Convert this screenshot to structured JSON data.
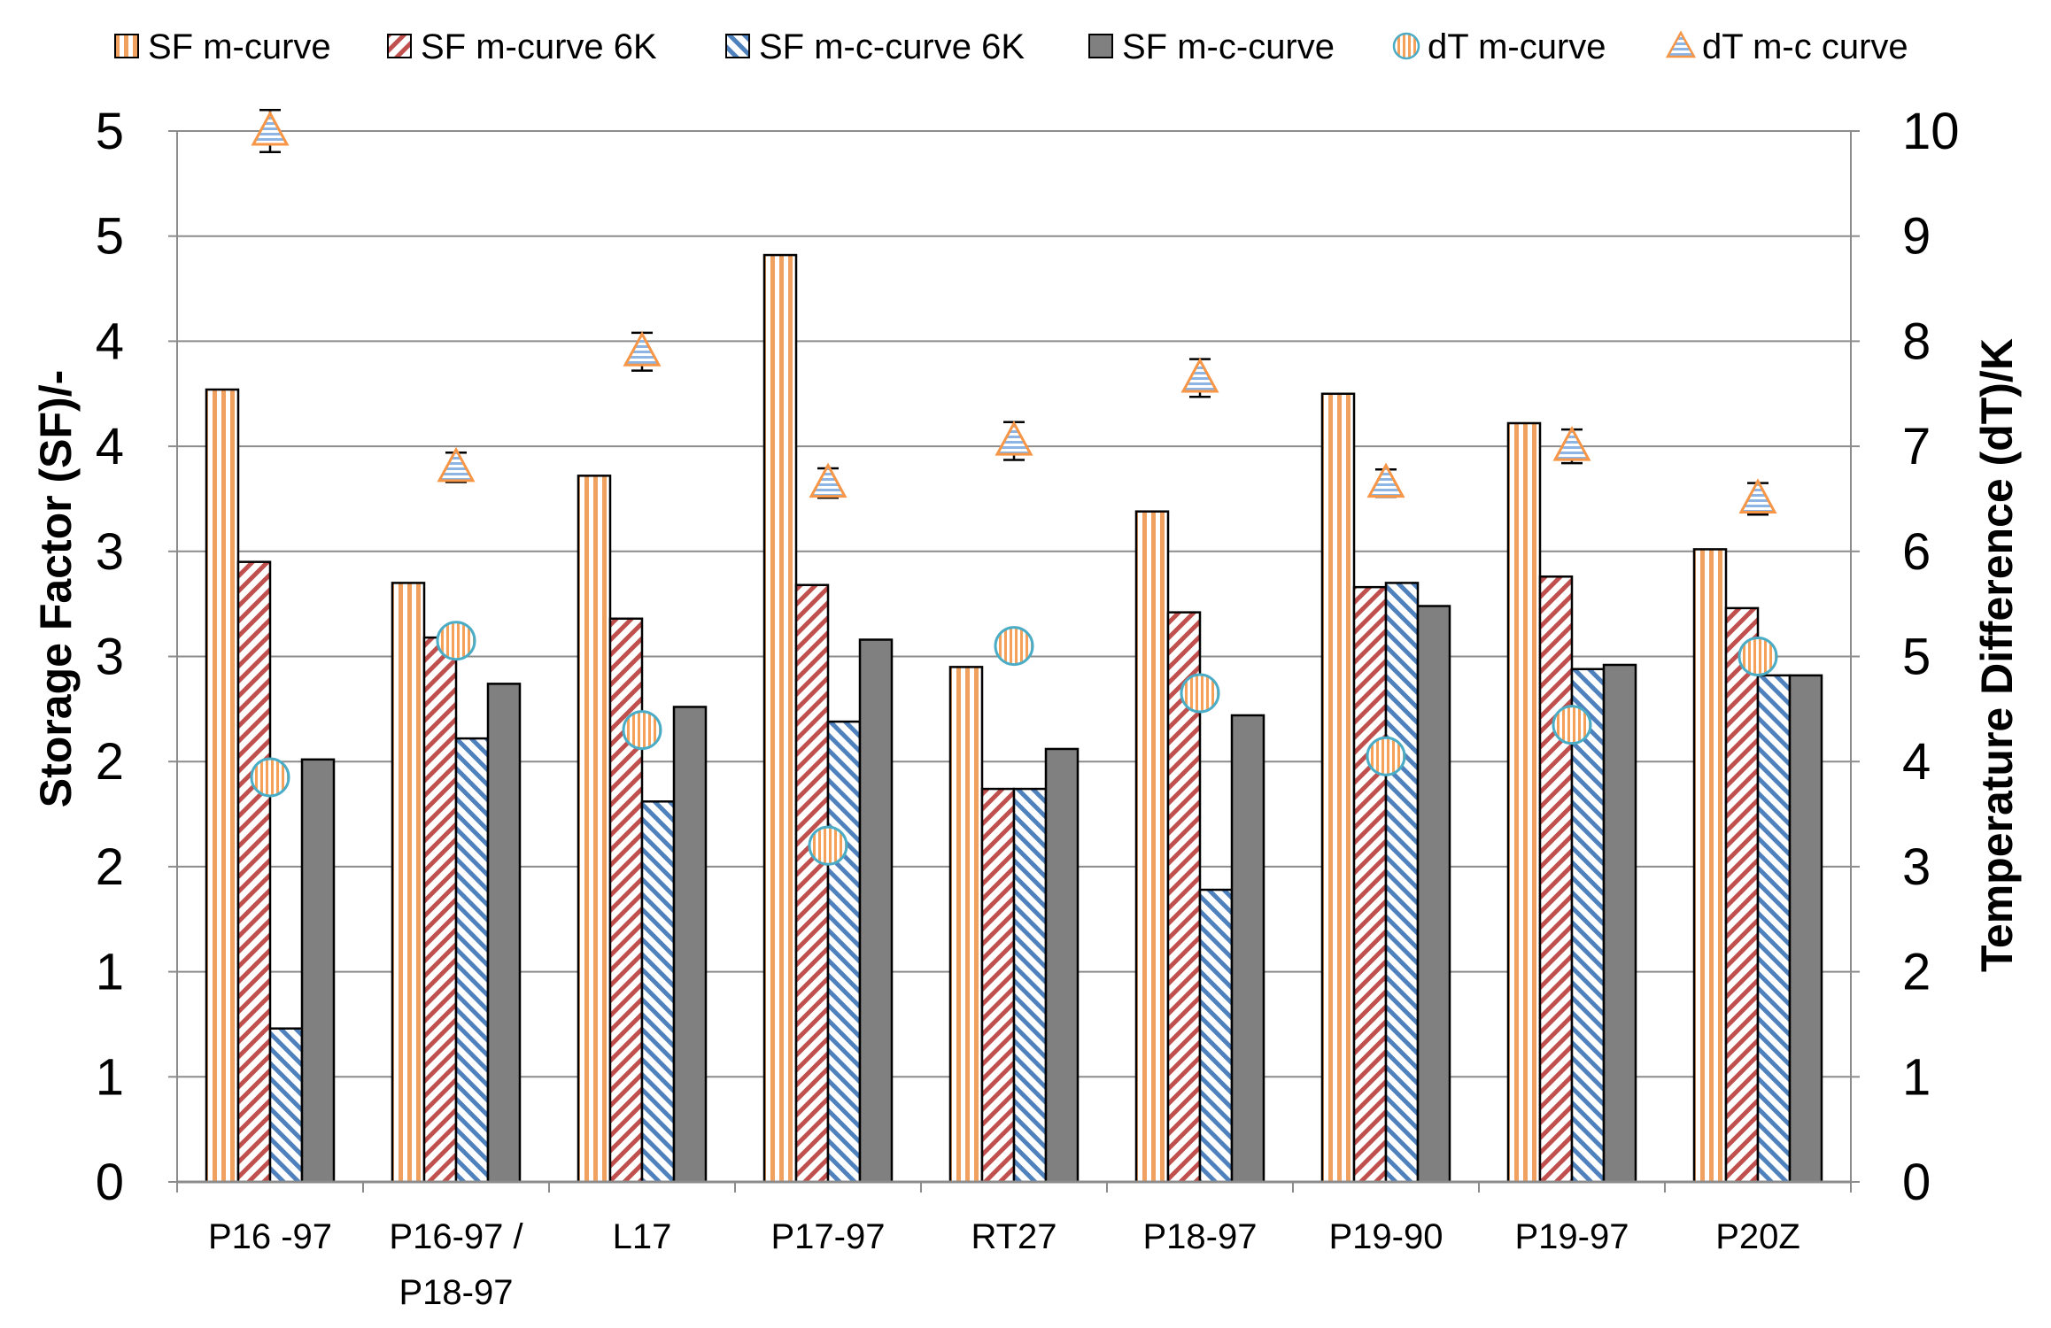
{
  "chart_data": {
    "type": "bar",
    "title": "",
    "categories": [
      [
        "P16 -97"
      ],
      [
        "P16-97 /",
        "P18-97"
      ],
      [
        "L17"
      ],
      [
        "P17-97"
      ],
      [
        "RT27"
      ],
      [
        "P18-97"
      ],
      [
        "P19-90"
      ],
      [
        "P19-97"
      ],
      [
        "P20Z"
      ]
    ],
    "y_left": {
      "label": "Storage Factor (SF)/-",
      "min": 0,
      "max": 5,
      "tick_labels": [
        "0",
        "1",
        "1",
        "2",
        "2",
        "3",
        "3",
        "4",
        "4",
        "5",
        "5"
      ]
    },
    "y_right": {
      "label": "Temperature Difference (dT)/K",
      "min": 0,
      "max": 10,
      "tick_labels": [
        "0",
        "1",
        "2",
        "3",
        "4",
        "5",
        "6",
        "7",
        "8",
        "9",
        "10"
      ]
    },
    "grid": true,
    "legend_position": "top",
    "series": [
      {
        "name": "SF m-curve",
        "kind": "bar",
        "axis": "left",
        "pattern": "vertical",
        "color": "#f0a160",
        "values": [
          3.77,
          2.85,
          3.36,
          4.41,
          2.45,
          3.19,
          3.75,
          3.61,
          3.01
        ]
      },
      {
        "name": "SF m-curve  6K",
        "kind": "bar",
        "axis": "left",
        "pattern": "diag-up",
        "color": "#c0504d",
        "values": [
          2.95,
          2.59,
          2.68,
          2.84,
          1.87,
          2.71,
          2.83,
          2.88,
          2.73
        ]
      },
      {
        "name": "SF m-c-curve 6K",
        "kind": "bar",
        "axis": "left",
        "pattern": "diag-down",
        "color": "#4f81bd",
        "values": [
          0.73,
          2.11,
          1.81,
          2.19,
          1.87,
          1.39,
          2.85,
          2.44,
          2.41
        ]
      },
      {
        "name": "SF m-c-curve",
        "kind": "bar",
        "axis": "left",
        "pattern": "solid",
        "color": "#808080",
        "values": [
          2.01,
          2.37,
          2.26,
          2.58,
          2.06,
          2.22,
          2.74,
          2.46,
          2.41
        ]
      },
      {
        "name": "dT m-curve",
        "kind": "marker",
        "axis": "right",
        "shape": "circle",
        "color": "#f5a15a",
        "values": [
          3.85,
          5.15,
          4.3,
          3.2,
          5.1,
          4.65,
          4.05,
          4.35,
          5.0
        ]
      },
      {
        "name": "dT m-c curve",
        "kind": "marker",
        "axis": "right",
        "shape": "triangle",
        "color": "#9dc3e6",
        "values": [
          10.0,
          6.8,
          7.9,
          6.65,
          7.05,
          7.65,
          6.65,
          7.0,
          6.5
        ],
        "error": [
          0.2,
          0.14,
          0.18,
          0.14,
          0.18,
          0.18,
          0.13,
          0.16,
          0.15
        ]
      }
    ]
  }
}
